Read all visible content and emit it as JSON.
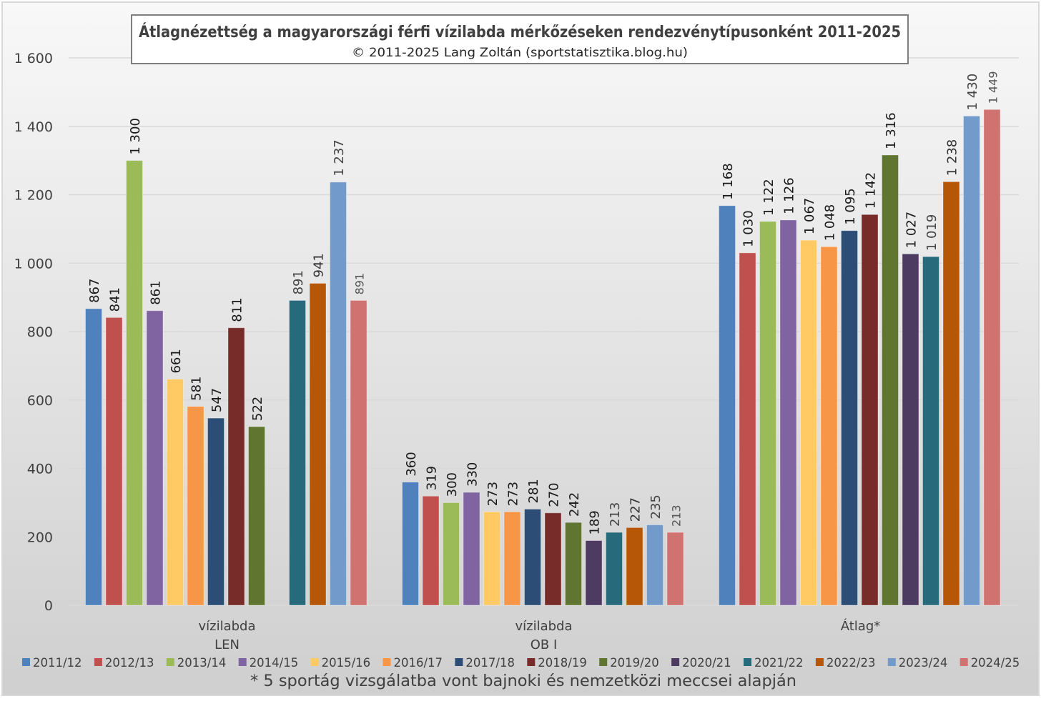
{
  "chart_data": {
    "type": "bar",
    "title": "Átlagnézettség a magyarországi férfi vízilabda mérkőzéseken rendezvénytípusonként 2011-2025",
    "subtitle": "© 2011-2025 Lang Zoltán (sportstatisztika.blog.hu)",
    "footnote": "* 5 sportág vizsgálatba vont bajnoki és nemzetközi meccsei alapján",
    "xlabel": "",
    "ylabel": "",
    "ylim": [
      0,
      1600
    ],
    "yticks": [
      0,
      200,
      400,
      600,
      800,
      1000,
      1200,
      1400,
      1600
    ],
    "ytick_labels": [
      "0",
      "200",
      "400",
      "600",
      "800",
      "1 000",
      "1 200",
      "1 400",
      "1 600"
    ],
    "grid": true,
    "legend_position": "bottom",
    "categories": [
      [
        "vízilabda",
        "LEN"
      ],
      [
        "vízilabda",
        "OB I"
      ],
      [
        "Átlag*"
      ]
    ],
    "series": [
      {
        "name": "2011/12",
        "color": "#4f81bd",
        "values": [
          867,
          360,
          1168
        ],
        "labels": [
          "867",
          "360",
          "1 168"
        ],
        "label_color": "#1a1a1a"
      },
      {
        "name": "2012/13",
        "color": "#c0504d",
        "values": [
          841,
          319,
          1030
        ],
        "labels": [
          "841",
          "319",
          "1 030"
        ],
        "label_color": "#1a1a1a"
      },
      {
        "name": "2013/14",
        "color": "#9bbb59",
        "values": [
          1300,
          300,
          1122
        ],
        "labels": [
          "1 300",
          "300",
          "1 122"
        ],
        "label_color": "#1a1a1a"
      },
      {
        "name": "2014/15",
        "color": "#8064a2",
        "values": [
          861,
          330,
          1126
        ],
        "labels": [
          "861",
          "330",
          "1 126"
        ],
        "label_color": "#1a1a1a"
      },
      {
        "name": "2015/16",
        "color": "#ffc963",
        "values": [
          661,
          273,
          1067
        ],
        "labels": [
          "661",
          "273",
          "1 067"
        ],
        "label_color": "#1a1a1a"
      },
      {
        "name": "2016/17",
        "color": "#f79646",
        "values": [
          581,
          273,
          1048
        ],
        "labels": [
          "581",
          "273",
          "1 048"
        ],
        "label_color": "#1a1a1a"
      },
      {
        "name": "2017/18",
        "color": "#2c4d75",
        "values": [
          547,
          281,
          1095
        ],
        "labels": [
          "547",
          "281",
          "1 095"
        ],
        "label_color": "#1a1a1a"
      },
      {
        "name": "2018/19",
        "color": "#772c2a",
        "values": [
          811,
          270,
          1142
        ],
        "labels": [
          "811",
          "270",
          "1 142"
        ],
        "label_color": "#1a1a1a"
      },
      {
        "name": "2019/20",
        "color": "#5f7530",
        "values": [
          522,
          242,
          1316
        ],
        "labels": [
          "522",
          "242",
          "1 316"
        ],
        "label_color": "#1a1a1a"
      },
      {
        "name": "2020/21",
        "color": "#4d3b62",
        "values": [
          null,
          189,
          1027
        ],
        "labels": [
          "",
          "189",
          "1 027"
        ],
        "label_color": "#1a1a1a"
      },
      {
        "name": "2021/22",
        "color": "#276a7c",
        "values": [
          891,
          213,
          1019
        ],
        "labels": [
          "891",
          "213",
          "1 019"
        ],
        "label_color": "#444444"
      },
      {
        "name": "2022/23",
        "color": "#b65708",
        "values": [
          941,
          227,
          1238
        ],
        "labels": [
          "941",
          "227",
          "1 238"
        ],
        "label_color": "#333333"
      },
      {
        "name": "2023/24",
        "color": "#729aca",
        "values": [
          1237,
          235,
          1430
        ],
        "labels": [
          "1 237",
          "235",
          "1 430"
        ],
        "label_color": "#444444"
      },
      {
        "name": "2024/25",
        "color": "#d07270",
        "values": [
          891,
          213,
          1449
        ],
        "labels": [
          "891",
          "213",
          "1 449"
        ],
        "label_color": "#555555"
      }
    ]
  }
}
